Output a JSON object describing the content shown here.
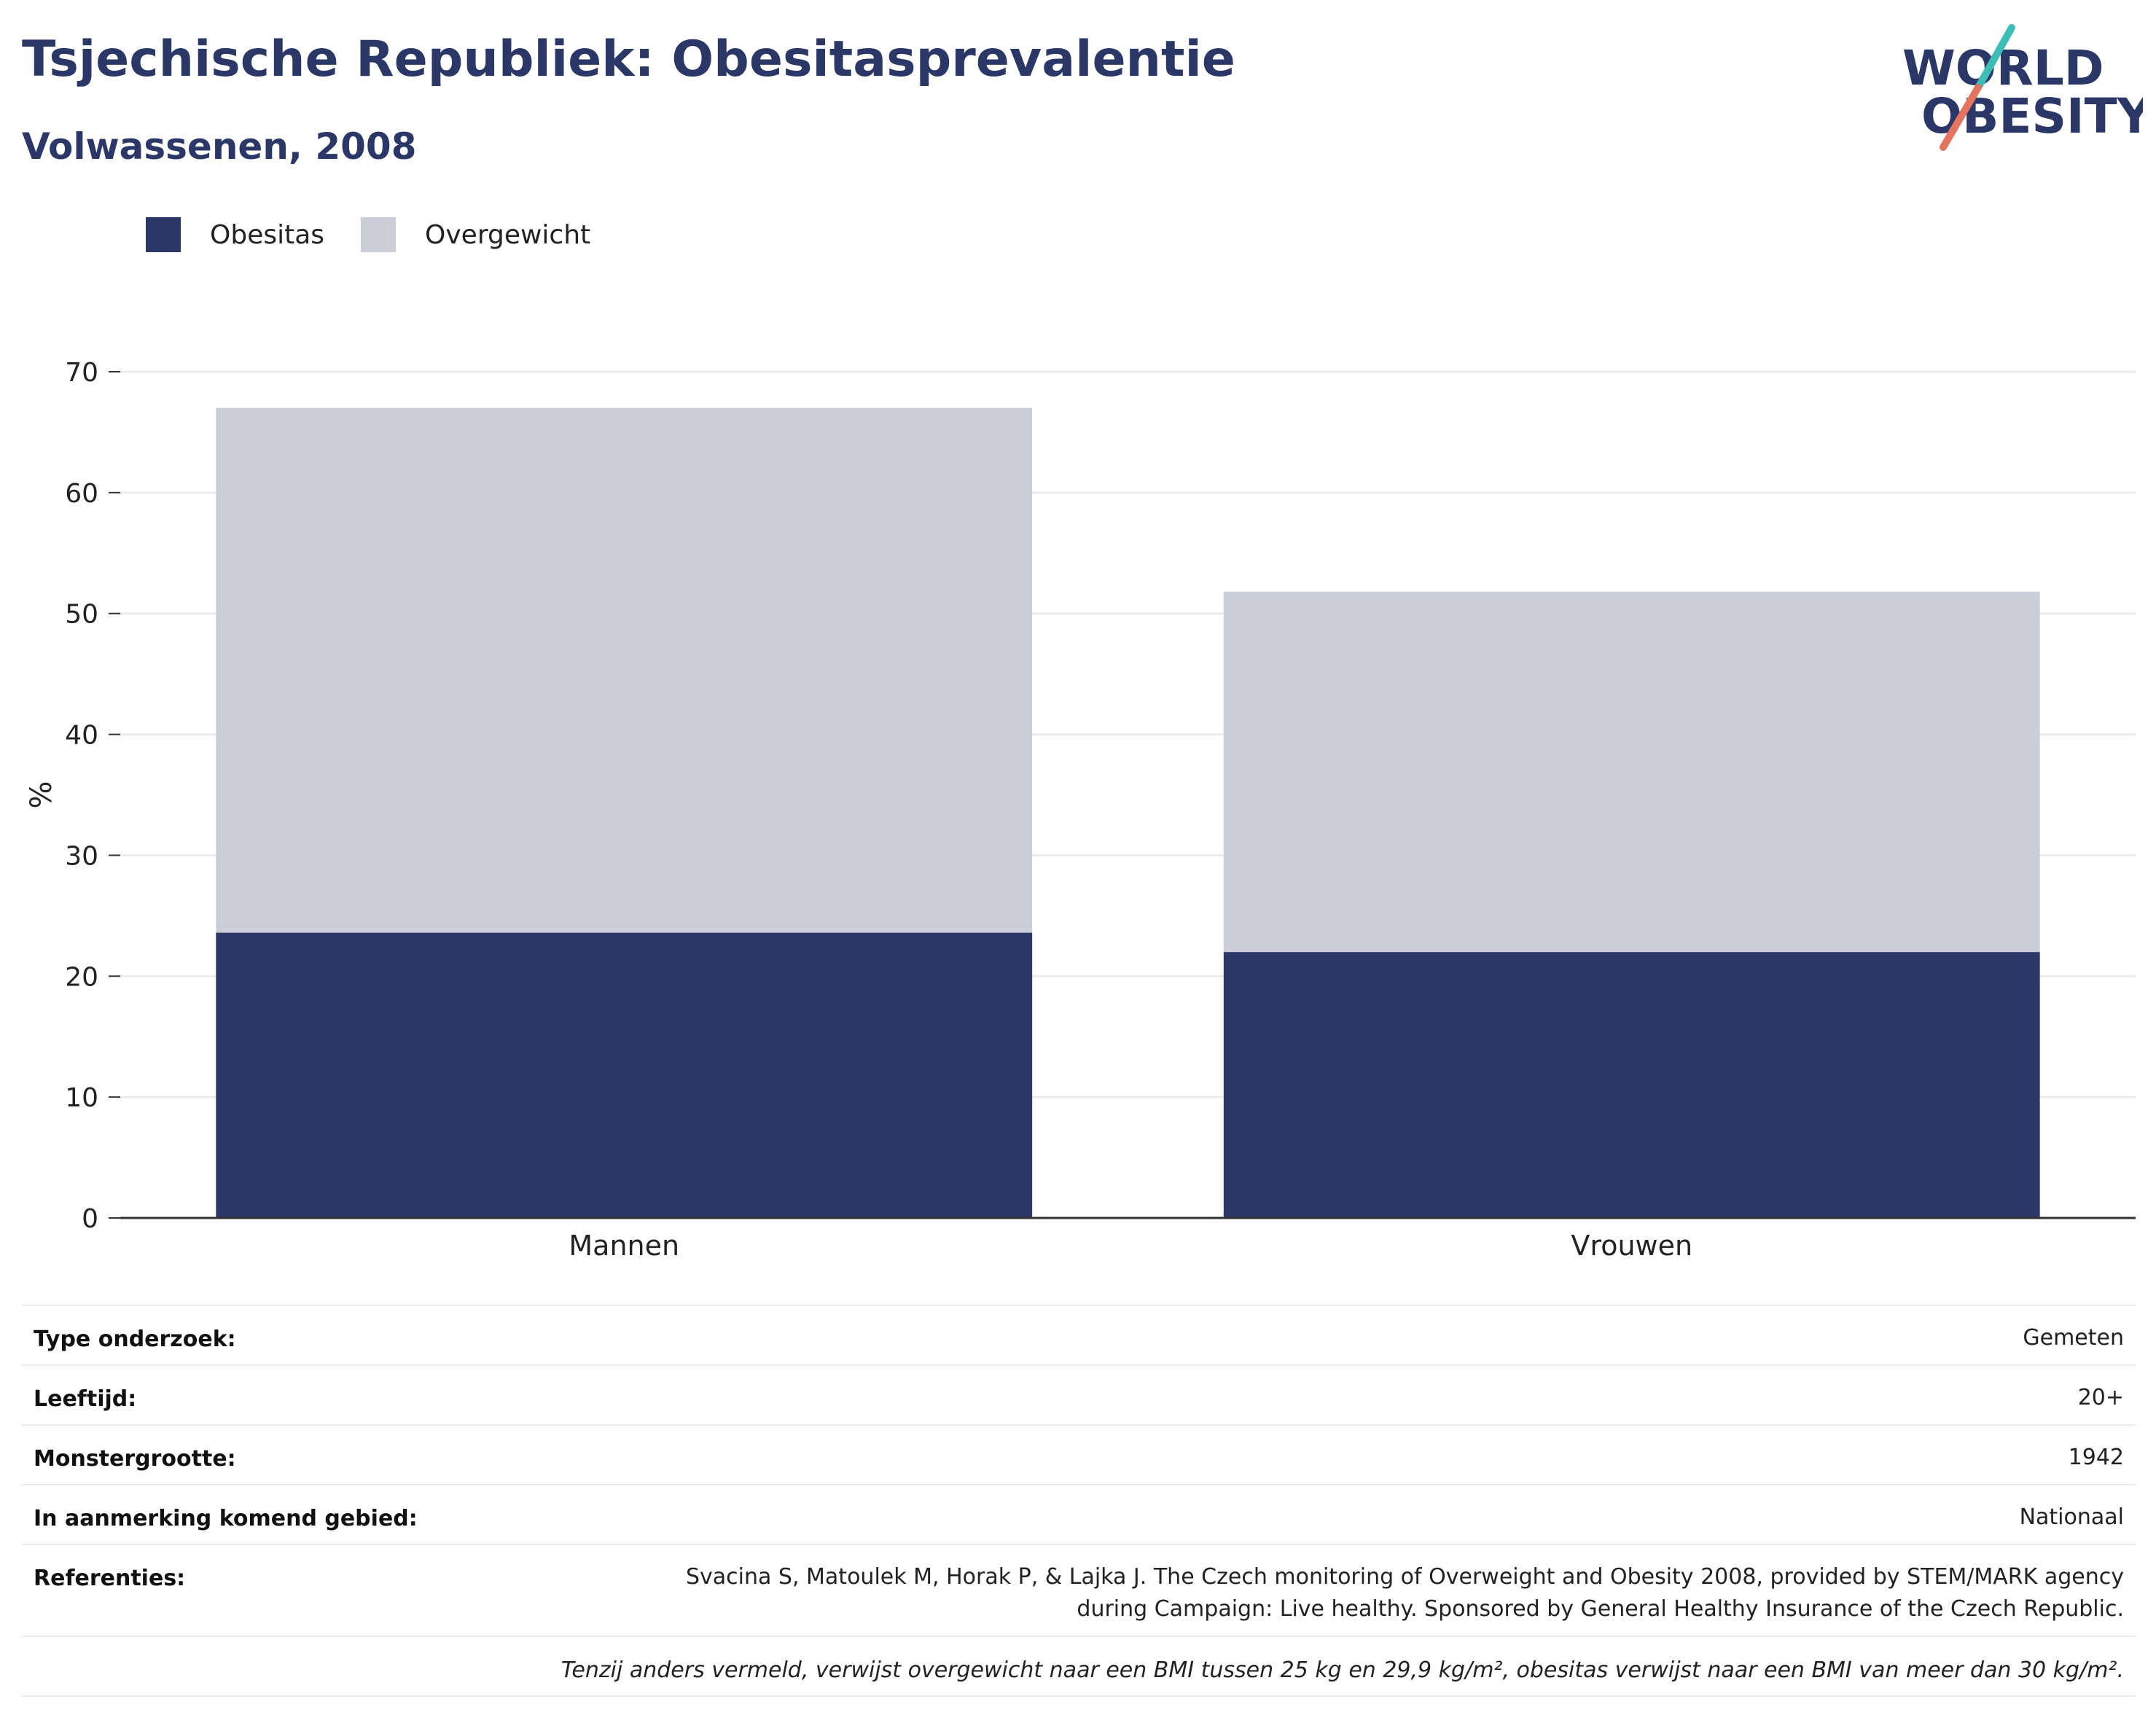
{
  "header": {
    "title": "Tsjechische Republiek: Obesitasprevalentie",
    "subtitle": "Volwassenen, 2008"
  },
  "logo": {
    "line1": "WORLD",
    "line2": "OBESITY",
    "accent_top": "#3dbdb5",
    "accent_bottom": "#e4735f",
    "text_color": "#2b3766"
  },
  "colors": {
    "obesitas": "#2b3766",
    "overgewicht": "#cbcdd8",
    "grid": "#e9ebef",
    "axis": "#333333"
  },
  "chart_data": {
    "type": "bar",
    "stacked": true,
    "categories": [
      "Mannen",
      "Vrouwen"
    ],
    "series": [
      {
        "name": "Obesitas",
        "values": [
          23.6,
          22.0
        ]
      },
      {
        "name": "Overgewicht",
        "values": [
          43.4,
          29.8
        ]
      }
    ],
    "ylabel": "%",
    "ylim": [
      0,
      70
    ],
    "yticks": [
      0,
      10,
      20,
      30,
      40,
      50,
      60,
      70
    ],
    "grid": true,
    "legend_position": "top-left"
  },
  "meta": {
    "rows": [
      {
        "label": "Type onderzoek:",
        "value": "Gemeten"
      },
      {
        "label": "Leeftijd:",
        "value": "20+"
      },
      {
        "label": "Monstergrootte:",
        "value": "1942"
      },
      {
        "label": "In aanmerking komend gebied:",
        "value": "Nationaal"
      }
    ],
    "references_label": "Referenties:",
    "references_line1": "Svacina S, Matoulek M, Horak P, & Lajka J. The Czech monitoring of Overweight and Obesity 2008, provided by STEM/MARK agency",
    "references_line2": "during Campaign: Live healthy. Sponsored by General Healthy Insurance of the Czech Republic.",
    "note": "Tenzij anders vermeld, verwijst overgewicht naar een BMI tussen 25 kg en 29,9 kg/m², obesitas verwijst naar een BMI van meer dan 30 kg/m²."
  }
}
